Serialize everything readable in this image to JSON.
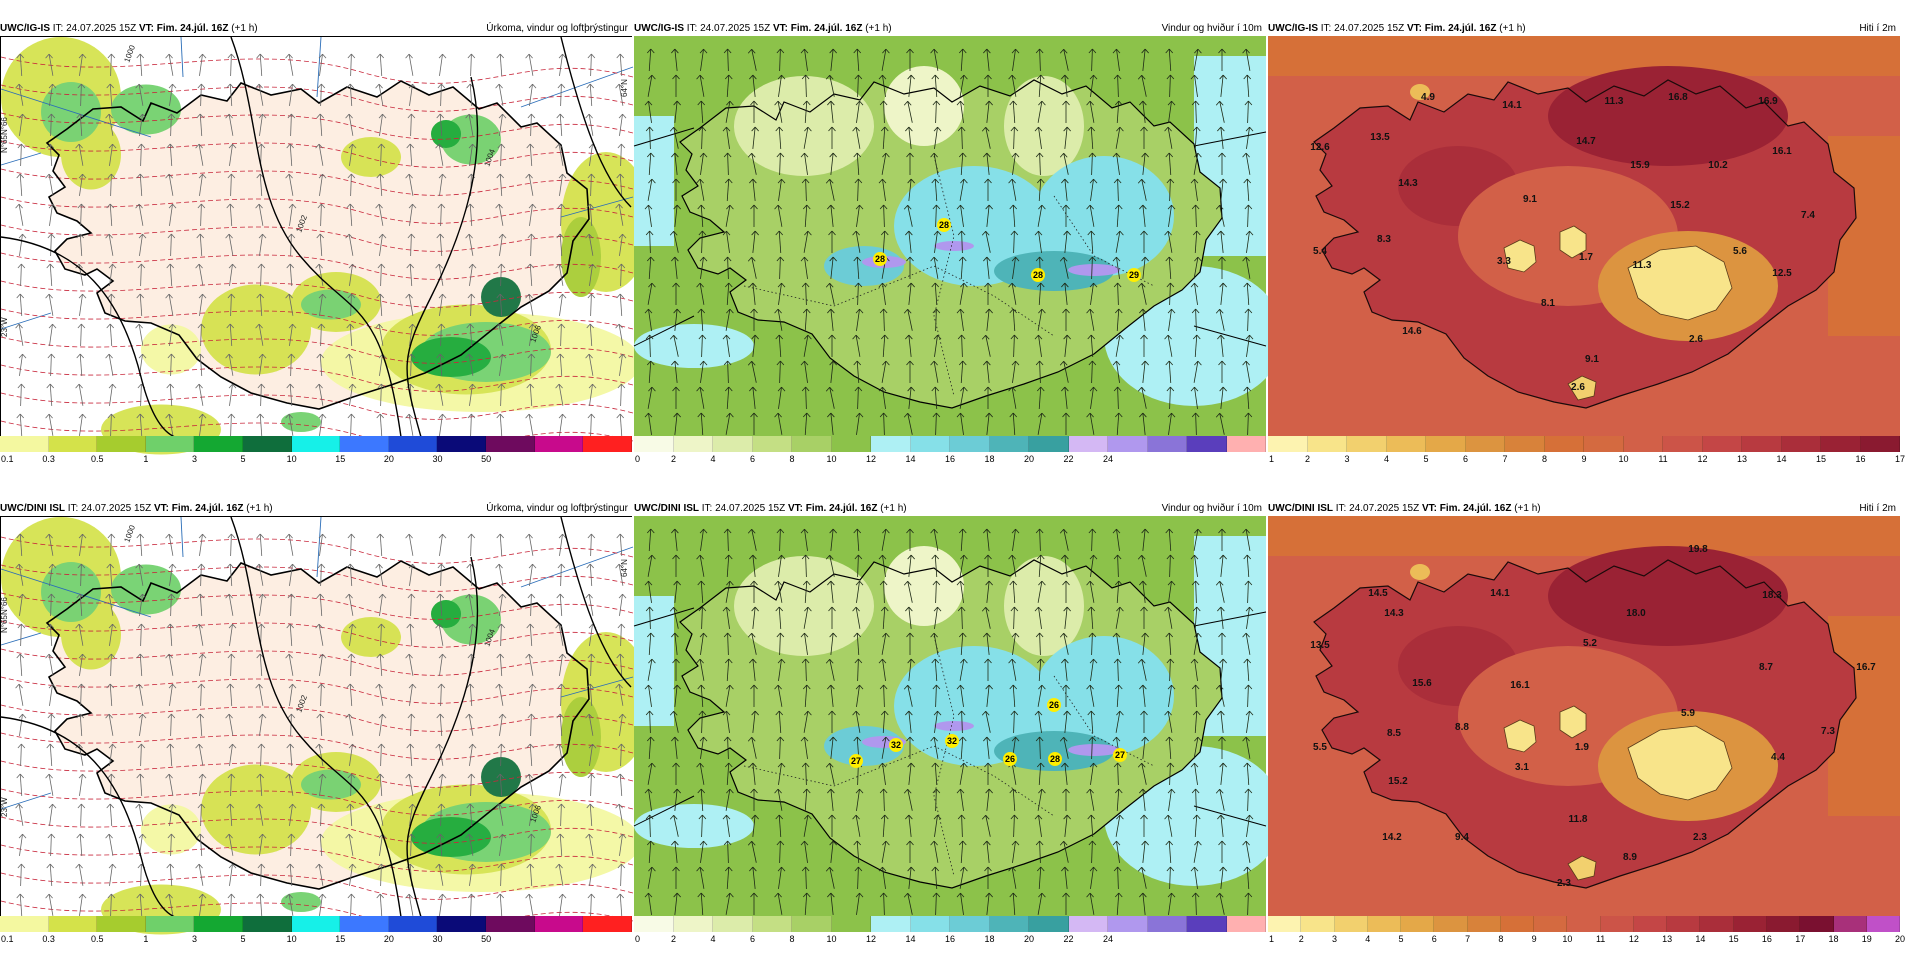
{
  "panels": [
    {
      "model": "UWC/IG-IS",
      "it": "IT: 24.07.2025 15Z",
      "vt": "VT: Fim. 24.júl. 16Z",
      "lead": "(+1 h)",
      "title": "Úrkoma, vindur og loftþrýstingur",
      "scale_colors": [
        "#f4f8a0",
        "#d4e24a",
        "#a6cc2e",
        "#6fd06a",
        "#14a832",
        "#0f6e3c",
        "#16f0e8",
        "#3c78ff",
        "#1f4bd8",
        "#0a0a78",
        "#6e0a5e",
        "#c80a8c",
        "#ff2020"
      ],
      "scale_labels": [
        "0.1",
        "0.3",
        "0.5",
        "1",
        "3",
        "5",
        "10",
        "15",
        "20",
        "30",
        "50"
      ],
      "edge_labels": [
        "N°66",
        "N°65",
        "64°N",
        "23°W"
      ],
      "isobars": [
        "1000",
        "1002",
        "1004",
        "1006"
      ]
    },
    {
      "model": "UWC/IG-IS",
      "it": "IT: 24.07.2025 15Z",
      "vt": "VT: Fim. 24.júl. 16Z",
      "lead": "(+1 h)",
      "title": "Vindur og hviður í 10m",
      "scale_colors": [
        "#f8fbe6",
        "#eef5c8",
        "#dcecaa",
        "#c4df84",
        "#a8d066",
        "#8cc24a",
        "#aef0f4",
        "#86e0e8",
        "#6cccd6",
        "#4eb4b8",
        "#38a0a0",
        "#d4b8f4",
        "#b098ee",
        "#8a74d8",
        "#5a3ebc",
        "#ffb0b0"
      ],
      "scale_labels": [
        "0",
        "2",
        "4",
        "6",
        "8",
        "10",
        "12",
        "14",
        "16",
        "18",
        "20",
        "22",
        "24"
      ],
      "labels": [
        "28",
        "28",
        "28",
        "29"
      ]
    },
    {
      "model": "UWC/IG-IS",
      "it": "IT: 24.07.2025 15Z",
      "vt": "VT: Fim. 24.júl. 16Z",
      "lead": "(+1 h)",
      "title": "Hiti í 2m",
      "scale_colors": [
        "#fdf3b0",
        "#f8e48a",
        "#f2d06e",
        "#ecbc58",
        "#e4a848",
        "#dc9440",
        "#d8823a",
        "#d67038",
        "#d46a40",
        "#d26048",
        "#cc5448",
        "#c44646",
        "#b83a40",
        "#aa2e3a",
        "#9a2234",
        "#8a1a30"
      ],
      "scale_labels": [
        "1",
        "2",
        "3",
        "4",
        "5",
        "6",
        "7",
        "8",
        "9",
        "10",
        "11",
        "12",
        "13",
        "14",
        "15",
        "16",
        "17"
      ],
      "labels": [
        "4.9",
        "14.1",
        "11.3",
        "16.8",
        "16.9",
        "12.6",
        "13.5",
        "14.7",
        "15.9",
        "10.2",
        "16.1",
        "14.3",
        "9.1",
        "15.2",
        "7.4",
        "8.3",
        "5.4",
        "3.3",
        "1.7",
        "11.3",
        "5.6",
        "12.5",
        "8.1",
        "14.6",
        "2.6",
        "9.1",
        "2.6"
      ]
    },
    {
      "model": "UWC/DINI ISL",
      "it": "IT: 24.07.2025 15Z",
      "vt": "VT: Fim. 24.júl. 16Z",
      "lead": "(+1 h)",
      "title": "Úrkoma, vindur og loftþrýstingur",
      "scale_colors": [
        "#f4f8a0",
        "#d4e24a",
        "#a6cc2e",
        "#6fd06a",
        "#14a832",
        "#0f6e3c",
        "#16f0e8",
        "#3c78ff",
        "#1f4bd8",
        "#0a0a78",
        "#6e0a5e",
        "#c80a8c",
        "#ff2020"
      ],
      "scale_labels": [
        "0.1",
        "0.3",
        "0.5",
        "1",
        "3",
        "5",
        "10",
        "15",
        "20",
        "30",
        "50"
      ],
      "edge_labels": [
        "N°66",
        "N°65",
        "64°N",
        "23°W"
      ],
      "isobars": [
        "1000",
        "1002",
        "1004",
        "1006"
      ]
    },
    {
      "model": "UWC/DINI ISL",
      "it": "IT: 24.07.2025 15Z",
      "vt": "VT: Fim. 24.júl. 16Z",
      "lead": "(+1 h)",
      "title": "Vindur og hviður í 10m",
      "scale_colors": [
        "#f8fbe6",
        "#eef5c8",
        "#dcecaa",
        "#c4df84",
        "#a8d066",
        "#8cc24a",
        "#aef0f4",
        "#86e0e8",
        "#6cccd6",
        "#4eb4b8",
        "#38a0a0",
        "#d4b8f4",
        "#b098ee",
        "#8a74d8",
        "#5a3ebc",
        "#ffb0b0"
      ],
      "scale_labels": [
        "0",
        "2",
        "4",
        "6",
        "8",
        "10",
        "12",
        "14",
        "16",
        "18",
        "20",
        "22",
        "24"
      ],
      "labels": [
        "26",
        "27",
        "32",
        "32",
        "26",
        "28",
        "27"
      ]
    },
    {
      "model": "UWC/DINI ISL",
      "it": "IT: 24.07.2025 15Z",
      "vt": "VT: Fim. 24.júl. 16Z",
      "lead": "(+1 h)",
      "title": "Hiti í 2m",
      "scale_colors": [
        "#fdf3b0",
        "#f8e48a",
        "#f2d06e",
        "#ecbc58",
        "#e4a848",
        "#dc9440",
        "#d8823a",
        "#d67038",
        "#d46a40",
        "#d26048",
        "#cc5448",
        "#c44646",
        "#b83a40",
        "#aa2e3a",
        "#9a2234",
        "#8a1a30",
        "#7a1030",
        "#a8307a",
        "#c050c8"
      ],
      "scale_labels": [
        "1",
        "2",
        "3",
        "4",
        "5",
        "6",
        "7",
        "8",
        "9",
        "10",
        "11",
        "12",
        "13",
        "14",
        "15",
        "16",
        "17",
        "18",
        "19",
        "20"
      ],
      "labels": [
        "19.8",
        "14.5",
        "14.1",
        "18.3",
        "14.3",
        "18.0",
        "13.5",
        "5.2",
        "8.7",
        "16.7",
        "15.6",
        "16.1",
        "5.9",
        "8.5",
        "8.8",
        "7.3",
        "5.5",
        "3.1",
        "1.9",
        "4.4",
        "15.2",
        "11.8",
        "14.2",
        "9.4",
        "2.3",
        "8.9",
        "2.3"
      ]
    }
  ]
}
